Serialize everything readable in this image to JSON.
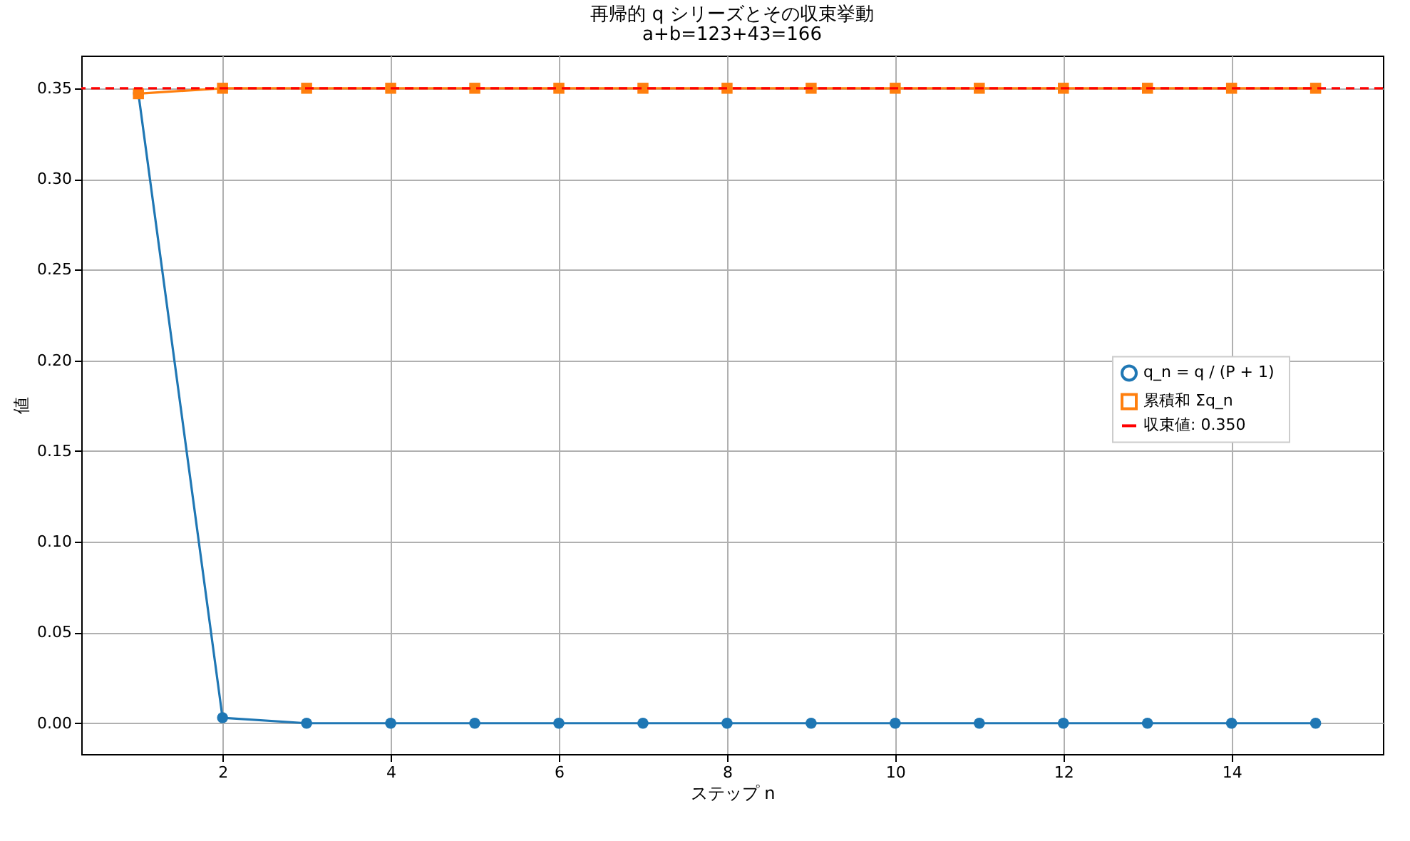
{
  "chart_data": {
    "type": "line",
    "title": "再帰的 q シリーズとその収束挙動",
    "subtitle": "a+b=123+43=166",
    "xlabel": "ステップ n",
    "ylabel": "値",
    "x": [
      1,
      2,
      3,
      4,
      5,
      6,
      7,
      8,
      9,
      10,
      11,
      12,
      13,
      14,
      15
    ],
    "series": [
      {
        "name": "q_n = q  / (P + 1)",
        "color": "#1f77b4",
        "marker": "circle",
        "values": [
          0.347,
          0.003,
          0,
          0,
          0,
          0,
          0,
          0,
          0,
          0,
          0,
          0,
          0,
          0,
          0
        ]
      },
      {
        "name": "累積和 Σq_n",
        "color": "#ff7f0e",
        "marker": "square",
        "values": [
          0.347,
          0.35,
          0.35,
          0.35,
          0.35,
          0.35,
          0.35,
          0.35,
          0.35,
          0.35,
          0.35,
          0.35,
          0.35,
          0.35,
          0.35
        ]
      }
    ],
    "ref_lines": [
      {
        "axis": "y",
        "value": 0.35,
        "label": "収束値: 0.350",
        "color": "#ff0000",
        "line_style": "dashed"
      }
    ],
    "xlim": [
      0.32,
      15.8
    ],
    "xticks": [
      2,
      4,
      6,
      8,
      10,
      12,
      14
    ],
    "ylim": [
      -0.017,
      0.368
    ],
    "yticks": [
      {
        "value": 0,
        "label": "0.00"
      },
      {
        "value": 0.05,
        "label": "0.05"
      },
      {
        "value": 0.1,
        "label": "0.10"
      },
      {
        "value": 0.15,
        "label": "0.15"
      },
      {
        "value": 0.2,
        "label": "0.20"
      },
      {
        "value": 0.25,
        "label": "0.25"
      },
      {
        "value": 0.3,
        "label": "0.30"
      },
      {
        "value": 0.35,
        "label": "0.35"
      }
    ],
    "grid": true,
    "legend": "right",
    "line_style": "solid"
  }
}
